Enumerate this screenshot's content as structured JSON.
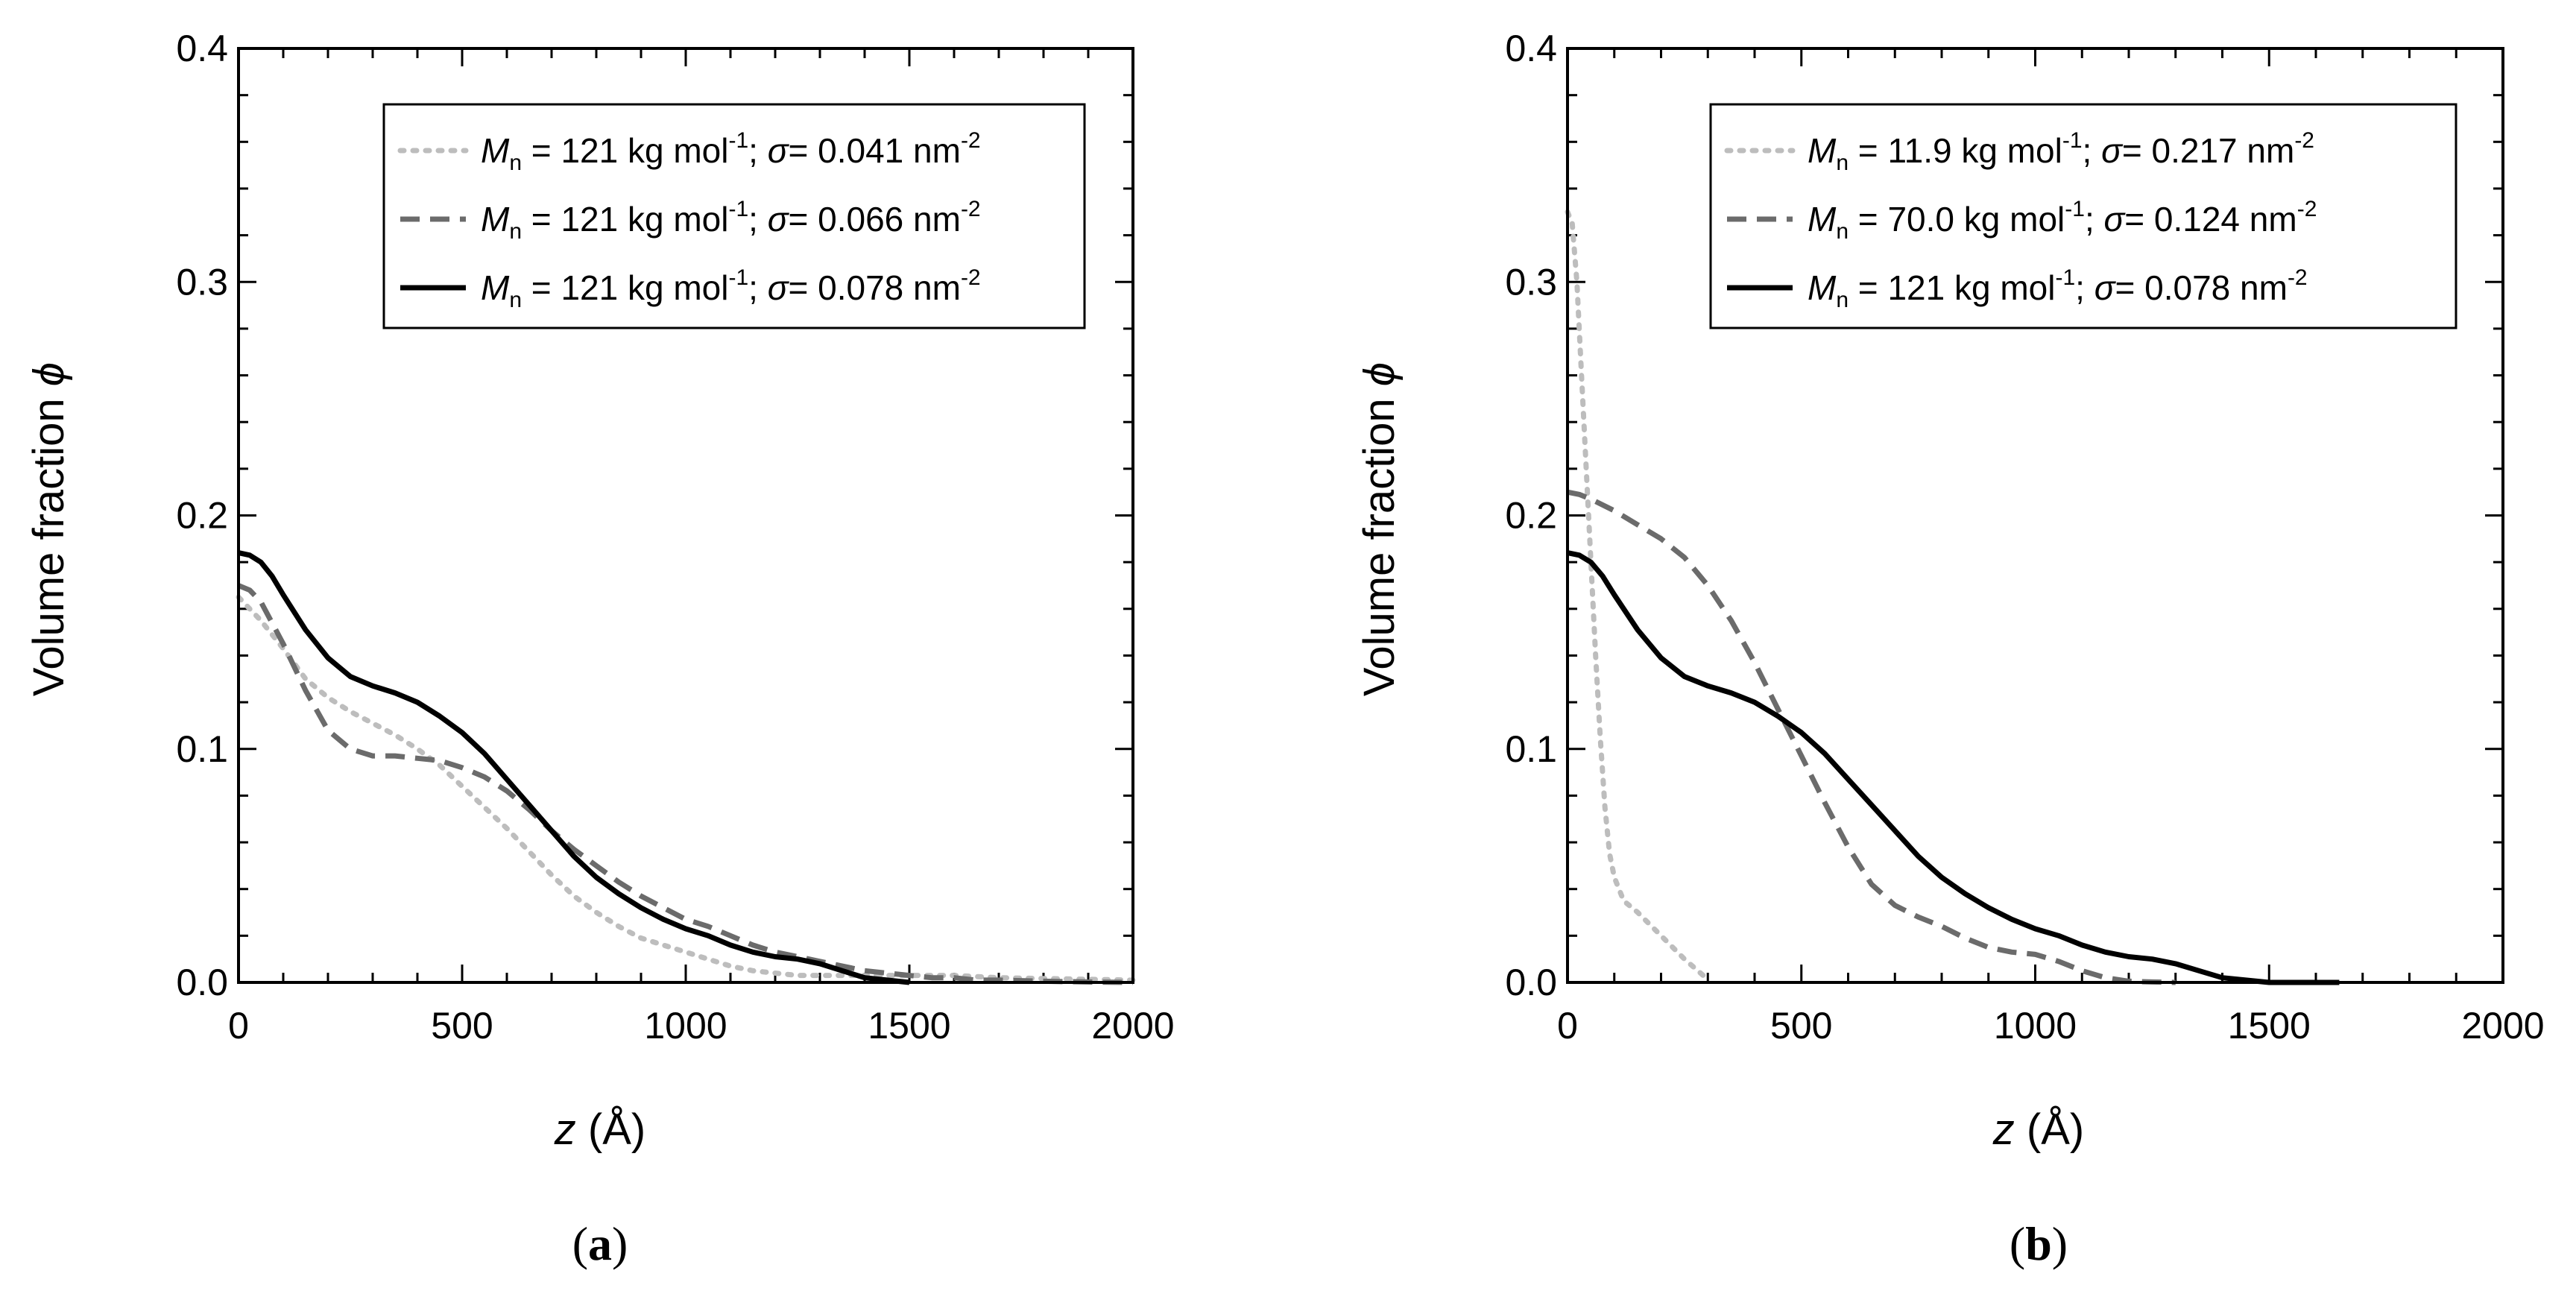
{
  "chart_data": [
    {
      "type": "line",
      "panel_label": "a",
      "xlabel_var": "z",
      "xlabel_unit": "(Å)",
      "ylabel_text": "Volume fraction",
      "ylabel_sym": "ϕ",
      "xlim": [
        0,
        2000
      ],
      "ylim": [
        0,
        0.4
      ],
      "x_ticks": [
        0,
        500,
        1000,
        1500,
        2000
      ],
      "x_tick_labels": [
        "0",
        "500",
        "1000",
        "1500",
        "2000"
      ],
      "y_ticks": [
        0,
        0.1,
        0.2,
        0.3,
        0.4
      ],
      "y_tick_labels": [
        "0.0",
        "0.1",
        "0.2",
        "0.3",
        "0.4"
      ],
      "legend_position": "top-right",
      "grid": false,
      "series": [
        {
          "name": "Mn = 121 kg mol-1; σ = 0.041 nm-2",
          "legend": {
            "mn_val": "121",
            "sigma_val": "0.041"
          },
          "style": "dotted",
          "color": "#bdbdbd",
          "x": [
            0,
            50,
            100,
            150,
            200,
            250,
            300,
            350,
            400,
            450,
            500,
            550,
            600,
            650,
            700,
            750,
            800,
            850,
            900,
            950,
            1000,
            1050,
            1100,
            1150,
            1200,
            1250,
            1300,
            1350,
            1400,
            1500,
            1600,
            1700,
            2000
          ],
          "y": [
            0.165,
            0.155,
            0.143,
            0.13,
            0.122,
            0.116,
            0.111,
            0.106,
            0.1,
            0.093,
            0.084,
            0.075,
            0.066,
            0.056,
            0.046,
            0.037,
            0.03,
            0.024,
            0.019,
            0.016,
            0.013,
            0.01,
            0.007,
            0.005,
            0.004,
            0.003,
            0.003,
            0.003,
            0.003,
            0.003,
            0.003,
            0.002,
            0.001
          ]
        },
        {
          "name": "Mn = 121 kg mol-1; σ = 0.066 nm-2",
          "legend": {
            "mn_val": "121",
            "sigma_val": "0.066"
          },
          "style": "dashed",
          "color": "#6b6b6b",
          "x": [
            0,
            25,
            50,
            100,
            150,
            200,
            250,
            300,
            350,
            400,
            450,
            500,
            550,
            600,
            650,
            700,
            750,
            800,
            850,
            900,
            950,
            1000,
            1050,
            1100,
            1150,
            1200,
            1250,
            1300,
            1350,
            1400,
            1450,
            1500,
            1550,
            1600,
            1650,
            1700,
            1800,
            1900,
            2000
          ],
          "y": [
            0.17,
            0.168,
            0.163,
            0.145,
            0.125,
            0.108,
            0.1,
            0.097,
            0.097,
            0.096,
            0.095,
            0.092,
            0.088,
            0.082,
            0.074,
            0.065,
            0.057,
            0.05,
            0.043,
            0.037,
            0.032,
            0.027,
            0.024,
            0.02,
            0.016,
            0.013,
            0.011,
            0.009,
            0.007,
            0.005,
            0.004,
            0.003,
            0.002,
            0.002,
            0.001,
            0.001,
            0.0005,
            0.0002,
            0.0
          ]
        },
        {
          "name": "Mn = 121 kg mol-1; σ = 0.078 nm-2",
          "legend": {
            "mn_val": "121",
            "sigma_val": "0.078"
          },
          "style": "solid",
          "color": "#000000",
          "x": [
            0,
            25,
            50,
            75,
            100,
            150,
            200,
            250,
            300,
            350,
            400,
            450,
            500,
            550,
            600,
            650,
            700,
            750,
            800,
            850,
            900,
            950,
            1000,
            1050,
            1100,
            1150,
            1200,
            1250,
            1300,
            1350,
            1400,
            1450,
            1500
          ],
          "y": [
            0.184,
            0.183,
            0.18,
            0.174,
            0.166,
            0.151,
            0.139,
            0.131,
            0.127,
            0.124,
            0.12,
            0.114,
            0.107,
            0.098,
            0.087,
            0.076,
            0.065,
            0.054,
            0.045,
            0.038,
            0.032,
            0.027,
            0.023,
            0.02,
            0.016,
            0.013,
            0.011,
            0.01,
            0.008,
            0.005,
            0.002,
            0.001,
            0.0
          ]
        }
      ]
    },
    {
      "type": "line",
      "panel_label": "b",
      "xlabel_var": "z",
      "xlabel_unit": "(Å)",
      "ylabel_text": "Volume fraction",
      "ylabel_sym": "ϕ",
      "xlim": [
        0,
        2000
      ],
      "ylim": [
        0,
        0.4
      ],
      "x_ticks": [
        0,
        500,
        1000,
        1500,
        2000
      ],
      "x_tick_labels": [
        "0",
        "500",
        "1000",
        "1500",
        "2000"
      ],
      "y_ticks": [
        0,
        0.1,
        0.2,
        0.3,
        0.4
      ],
      "y_tick_labels": [
        "0.0",
        "0.1",
        "0.2",
        "0.3",
        "0.4"
      ],
      "legend_position": "top-right",
      "grid": false,
      "series": [
        {
          "name": "Mn = 11.9 kg mol-1; σ = 0.217 nm-2",
          "legend": {
            "mn_val": "11.9",
            "sigma_val": "0.217"
          },
          "style": "dotted",
          "color": "#bdbdbd",
          "x": [
            0,
            10,
            20,
            30,
            40,
            50,
            60,
            70,
            80,
            90,
            100,
            120,
            150,
            200,
            250,
            290
          ],
          "y": [
            0.33,
            0.325,
            0.3,
            0.26,
            0.22,
            0.18,
            0.14,
            0.105,
            0.075,
            0.055,
            0.045,
            0.035,
            0.03,
            0.02,
            0.01,
            0.003
          ]
        },
        {
          "name": "Mn = 70.0 kg mol-1; σ = 0.124 nm-2",
          "legend": {
            "mn_val": "70.0",
            "sigma_val": "0.124"
          },
          "style": "dashed",
          "color": "#6b6b6b",
          "x": [
            0,
            25,
            50,
            100,
            150,
            200,
            250,
            300,
            350,
            400,
            450,
            500,
            550,
            600,
            650,
            700,
            750,
            800,
            850,
            900,
            950,
            1000,
            1050,
            1100,
            1150,
            1200,
            1250,
            1300
          ],
          "y": [
            0.21,
            0.209,
            0.207,
            0.202,
            0.196,
            0.19,
            0.182,
            0.17,
            0.155,
            0.137,
            0.117,
            0.097,
            0.077,
            0.058,
            0.042,
            0.033,
            0.028,
            0.024,
            0.019,
            0.015,
            0.013,
            0.012,
            0.009,
            0.005,
            0.002,
            0.0005,
            0.0002,
            0.0
          ]
        },
        {
          "name": "Mn = 121 kg mol-1; σ = 0.078 nm-2",
          "legend": {
            "mn_val": "121",
            "sigma_val": "0.078"
          },
          "style": "solid",
          "color": "#000000",
          "x": [
            0,
            25,
            50,
            75,
            100,
            150,
            200,
            250,
            300,
            350,
            400,
            450,
            500,
            550,
            600,
            650,
            700,
            750,
            800,
            850,
            900,
            950,
            1000,
            1050,
            1100,
            1150,
            1200,
            1250,
            1300,
            1350,
            1400,
            1450,
            1500,
            1550,
            1650
          ],
          "y": [
            0.184,
            0.183,
            0.18,
            0.174,
            0.166,
            0.151,
            0.139,
            0.131,
            0.127,
            0.124,
            0.12,
            0.114,
            0.107,
            0.098,
            0.087,
            0.076,
            0.065,
            0.054,
            0.045,
            0.038,
            0.032,
            0.027,
            0.023,
            0.02,
            0.016,
            0.013,
            0.011,
            0.01,
            0.008,
            0.005,
            0.002,
            0.001,
            0.0,
            0.0,
            0.0
          ]
        }
      ]
    }
  ],
  "legend_text": {
    "mn_symbol": "M",
    "mn_sub": "n",
    "kg_unit": " kg mol",
    "kg_exp": "-1",
    "semicolon": ";",
    "sigma_symbol": "σ",
    "nm_unit": " nm",
    "nm_exp": "-2",
    "equals": " = ",
    "sigma_equals": "= "
  }
}
